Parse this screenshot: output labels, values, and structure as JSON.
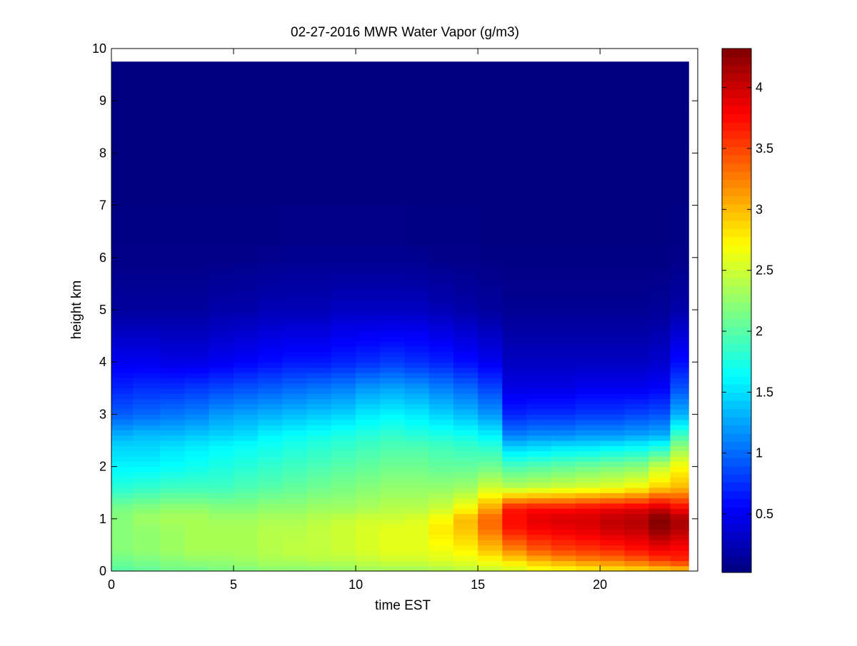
{
  "chart_data": {
    "type": "heatmap",
    "title": "02-27-2016 MWR Water Vapor (g/m3)",
    "xlabel": "time EST",
    "ylabel": "height km",
    "xlim": [
      0,
      24
    ],
    "ylim": [
      0,
      10
    ],
    "x_ticks": [
      0,
      5,
      10,
      15,
      20
    ],
    "y_ticks": [
      0,
      1,
      2,
      3,
      4,
      5,
      6,
      7,
      8,
      9,
      10
    ],
    "colorbar": {
      "colormap": "jet",
      "range": [
        0.02,
        4.32
      ],
      "ticks": [
        0.5,
        1,
        1.5,
        2,
        2.5,
        3,
        3.5,
        4
      ]
    },
    "x": [
      0.25,
      1.5,
      2.5,
      3.5,
      4.5,
      5.5,
      6.5,
      7.5,
      8.5,
      9.5,
      10.5,
      11.5,
      12.5,
      13.5,
      14.5,
      15.5,
      16.5,
      17.5,
      18.5,
      19.5,
      20.5,
      21.5,
      22.5,
      23.25
    ],
    "y": [
      0.05,
      0.15,
      0.25,
      0.35,
      0.45,
      0.55,
      0.65,
      0.75,
      0.85,
      0.95,
      1.05,
      1.15,
      1.25,
      1.35,
      1.45,
      1.55,
      1.65,
      1.75,
      1.85,
      1.95,
      2.05,
      2.15,
      2.25,
      2.35,
      2.45,
      2.55,
      2.65,
      2.75,
      2.85,
      2.95,
      3.05,
      3.15,
      3.25,
      3.35,
      3.45,
      3.55,
      3.65,
      3.75,
      3.85,
      3.95,
      4.05,
      4.15,
      4.25,
      4.35,
      4.45,
      4.55,
      4.65,
      4.75,
      4.85,
      4.95,
      5.05,
      5.15,
      5.25,
      5.35,
      5.45,
      5.55,
      5.65,
      5.75,
      5.85,
      5.95,
      6.5,
      7.5,
      8.5,
      9.375
    ],
    "profile_heights_km": [
      0.0,
      0.2,
      0.4,
      0.8,
      1.0,
      1.2,
      1.6,
      2.0,
      2.4,
      2.6,
      3.0,
      3.5,
      4.0,
      5.0,
      6.0,
      7.0,
      10.0
    ],
    "profiles": [
      {
        "time": 0.25,
        "values": [
          2.0,
          2.1,
          2.2,
          2.2,
          2.2,
          2.15,
          1.8,
          1.6,
          1.45,
          1.3,
          0.95,
          0.7,
          0.5,
          0.15,
          0.05,
          0.03,
          0.02
        ]
      },
      {
        "time": 1.5,
        "values": [
          2.05,
          2.15,
          2.25,
          2.25,
          2.3,
          2.2,
          1.85,
          1.6,
          1.45,
          1.35,
          1.0,
          0.75,
          0.5,
          0.15,
          0.05,
          0.03,
          0.02
        ]
      },
      {
        "time": 2.5,
        "values": [
          2.1,
          2.2,
          2.3,
          2.3,
          2.35,
          2.25,
          1.9,
          1.65,
          1.5,
          1.35,
          1.05,
          0.75,
          0.45,
          0.15,
          0.05,
          0.03,
          0.02
        ]
      },
      {
        "time": 3.5,
        "values": [
          2.1,
          2.25,
          2.35,
          2.35,
          2.35,
          2.25,
          1.9,
          1.7,
          1.55,
          1.4,
          1.1,
          0.8,
          0.45,
          0.15,
          0.05,
          0.03,
          0.02
        ]
      },
      {
        "time": 4.5,
        "values": [
          2.15,
          2.25,
          2.35,
          2.35,
          2.3,
          2.2,
          1.9,
          1.75,
          1.6,
          1.45,
          1.2,
          0.85,
          0.5,
          0.2,
          0.05,
          0.03,
          0.02
        ]
      },
      {
        "time": 5.5,
        "values": [
          2.15,
          2.3,
          2.35,
          2.35,
          2.3,
          2.2,
          1.95,
          1.8,
          1.65,
          1.5,
          1.25,
          0.9,
          0.55,
          0.2,
          0.06,
          0.03,
          0.02
        ]
      },
      {
        "time": 6.5,
        "values": [
          2.2,
          2.35,
          2.4,
          2.4,
          2.35,
          2.25,
          2.0,
          1.85,
          1.7,
          1.6,
          1.3,
          0.95,
          0.6,
          0.25,
          0.07,
          0.03,
          0.02
        ]
      },
      {
        "time": 7.5,
        "values": [
          2.2,
          2.35,
          2.45,
          2.4,
          2.35,
          2.25,
          2.05,
          1.9,
          1.75,
          1.65,
          1.35,
          1.0,
          0.65,
          0.25,
          0.08,
          0.03,
          0.02
        ]
      },
      {
        "time": 8.5,
        "values": [
          2.2,
          2.4,
          2.45,
          2.45,
          2.4,
          2.3,
          2.1,
          1.95,
          1.8,
          1.7,
          1.4,
          1.05,
          0.65,
          0.25,
          0.08,
          0.03,
          0.02
        ]
      },
      {
        "time": 9.5,
        "values": [
          2.25,
          2.4,
          2.5,
          2.5,
          2.45,
          2.3,
          2.15,
          2.0,
          1.85,
          1.75,
          1.45,
          1.1,
          0.7,
          0.3,
          0.08,
          0.03,
          0.02
        ]
      },
      {
        "time": 10.5,
        "values": [
          2.3,
          2.45,
          2.55,
          2.55,
          2.5,
          2.35,
          2.2,
          2.05,
          1.9,
          1.8,
          1.55,
          1.2,
          0.75,
          0.3,
          0.08,
          0.03,
          0.02
        ]
      },
      {
        "time": 11.5,
        "values": [
          2.3,
          2.5,
          2.6,
          2.6,
          2.5,
          2.4,
          2.25,
          2.1,
          1.95,
          1.85,
          1.6,
          1.25,
          0.8,
          0.3,
          0.08,
          0.03,
          0.02
        ]
      },
      {
        "time": 12.5,
        "values": [
          2.3,
          2.5,
          2.6,
          2.6,
          2.55,
          2.4,
          2.25,
          2.1,
          1.95,
          1.8,
          1.55,
          1.2,
          0.75,
          0.3,
          0.07,
          0.03,
          0.02
        ]
      },
      {
        "time": 13.5,
        "values": [
          2.35,
          2.55,
          2.65,
          2.8,
          2.7,
          2.5,
          2.25,
          2.05,
          1.9,
          1.75,
          1.45,
          1.1,
          0.7,
          0.25,
          0.06,
          0.03,
          0.02
        ]
      },
      {
        "time": 14.5,
        "values": [
          2.4,
          2.6,
          2.75,
          2.95,
          3.0,
          2.7,
          2.3,
          2.05,
          1.85,
          1.7,
          1.35,
          1.0,
          0.6,
          0.2,
          0.05,
          0.03,
          0.02
        ]
      },
      {
        "time": 15.5,
        "values": [
          2.45,
          2.7,
          2.95,
          3.3,
          3.35,
          3.1,
          2.5,
          2.1,
          1.8,
          1.6,
          1.2,
          0.85,
          0.5,
          0.15,
          0.04,
          0.03,
          0.02
        ]
      },
      {
        "time": 16.5,
        "values": [
          2.5,
          2.85,
          3.2,
          3.7,
          3.75,
          3.7,
          2.4,
          1.95,
          1.4,
          1.1,
          0.7,
          0.45,
          0.3,
          0.1,
          0.04,
          0.03,
          0.02
        ]
      },
      {
        "time": 17.5,
        "values": [
          2.6,
          3.0,
          3.4,
          3.8,
          3.9,
          3.75,
          2.45,
          2.0,
          1.45,
          1.15,
          0.75,
          0.45,
          0.3,
          0.1,
          0.04,
          0.03,
          0.02
        ]
      },
      {
        "time": 18.5,
        "values": [
          2.65,
          3.1,
          3.5,
          3.85,
          3.95,
          3.75,
          2.5,
          2.05,
          1.5,
          1.15,
          0.75,
          0.45,
          0.3,
          0.1,
          0.04,
          0.03,
          0.02
        ]
      },
      {
        "time": 19.5,
        "values": [
          2.7,
          3.2,
          3.55,
          3.9,
          3.95,
          3.8,
          2.55,
          2.1,
          1.5,
          1.2,
          0.8,
          0.5,
          0.3,
          0.1,
          0.04,
          0.03,
          0.02
        ]
      },
      {
        "time": 20.5,
        "values": [
          2.75,
          3.25,
          3.6,
          4.0,
          4.05,
          3.85,
          2.6,
          2.15,
          1.55,
          1.2,
          0.8,
          0.5,
          0.3,
          0.1,
          0.04,
          0.03,
          0.02
        ]
      },
      {
        "time": 21.5,
        "values": [
          2.8,
          3.35,
          3.7,
          4.05,
          4.1,
          3.9,
          2.7,
          2.2,
          1.6,
          1.25,
          0.85,
          0.5,
          0.3,
          0.1,
          0.04,
          0.03,
          0.02
        ]
      },
      {
        "time": 22.5,
        "values": [
          2.85,
          3.5,
          3.8,
          4.25,
          4.32,
          4.0,
          2.9,
          2.45,
          1.7,
          1.3,
          0.9,
          0.55,
          0.35,
          0.12,
          0.04,
          0.03,
          0.02
        ]
      },
      {
        "time": 23.25,
        "values": [
          2.9,
          3.6,
          3.75,
          4.1,
          4.15,
          3.8,
          3.0,
          2.7,
          2.2,
          1.9,
          1.3,
          0.9,
          0.6,
          0.2,
          0.05,
          0.03,
          0.02
        ]
      }
    ]
  }
}
